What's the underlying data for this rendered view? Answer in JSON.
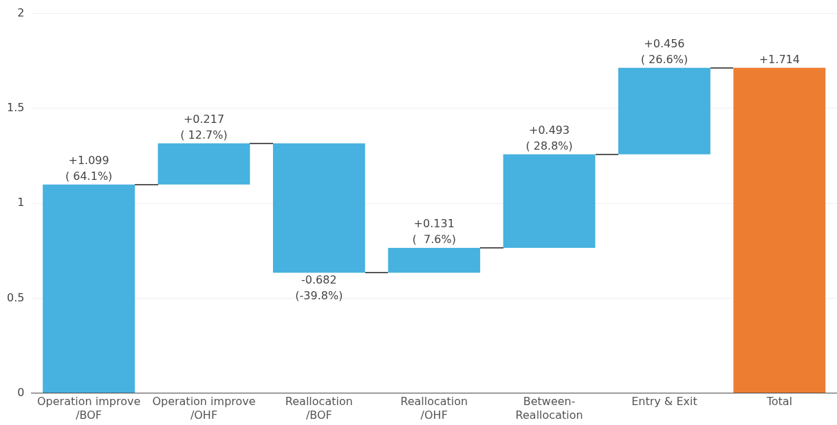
{
  "chart_data": {
    "type": "bar",
    "categories": [
      "Operation improve\n/BOF",
      "Operation improve\n/OHF",
      "Reallocation\n/BOF",
      "Reallocation\n/OHF",
      "Between-\nReallocation",
      "Entry & Exit",
      "Total"
    ],
    "values": [
      1.099,
      0.217,
      -0.682,
      0.131,
      0.493,
      0.456,
      1.714
    ],
    "base": [
      0,
      1.099,
      1.316,
      0.634,
      0.765,
      1.258,
      0
    ],
    "colors": [
      "#47b1df",
      "#47b1df",
      "#47b1df",
      "#47b1df",
      "#47b1df",
      "#47b1df",
      "#ed7d31"
    ],
    "value_labels": [
      "+1.099\n( 64.1%)",
      "+0.217\n( 12.7%)",
      "-0.682\n(-39.8%)",
      "+0.131\n(  7.6%)",
      "+0.493\n( 28.8%)",
      "+0.456\n( 26.6%)",
      "+1.714"
    ],
    "ylim": [
      0,
      2
    ],
    "yticks": [
      0,
      0.5,
      1,
      1.5,
      2
    ],
    "grid": "y"
  }
}
